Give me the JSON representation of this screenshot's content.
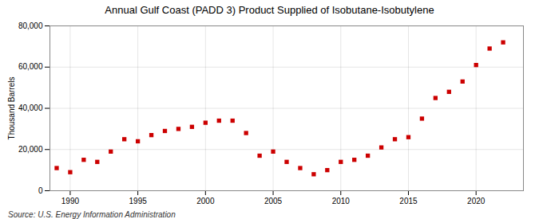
{
  "chart_data": {
    "type": "scatter",
    "title": "Annual Gulf Coast (PADD 3) Product Supplied of Isobutane-Isobutylene",
    "ylabel": "Thousand Barrels",
    "annotations": [
      "Source: U.S. Energy Information Administration"
    ],
    "x": [
      1989,
      1990,
      1991,
      1992,
      1993,
      1994,
      1995,
      1996,
      1997,
      1998,
      1999,
      2000,
      2001,
      2002,
      2003,
      2004,
      2005,
      2006,
      2007,
      2008,
      2009,
      2010,
      2011,
      2012,
      2013,
      2014,
      2015,
      2016,
      2017,
      2018,
      2019,
      2020,
      2021,
      2022
    ],
    "values": [
      11000,
      9000,
      15000,
      14000,
      19000,
      25000,
      24000,
      27000,
      29000,
      30000,
      31000,
      33000,
      34000,
      34000,
      28000,
      17000,
      19000,
      14000,
      11000,
      8000,
      10000,
      14000,
      15000,
      17000,
      21000,
      25000,
      26000,
      35000,
      45000,
      48000,
      53000,
      61000,
      69000,
      72000
    ],
    "color": "#cc0000",
    "marker": "square",
    "grid": true,
    "xlim": [
      1988.5,
      2023.5
    ],
    "xticks": [
      1990,
      1995,
      2000,
      2005,
      2010,
      2015,
      2020
    ],
    "ylim": [
      0,
      80000
    ],
    "yticks": [
      0,
      {
        "value": 20000,
        "label": "20,000"
      },
      {
        "value": 40000,
        "label": "40,000"
      },
      {
        "value": 60000,
        "label": "60,000"
      },
      {
        "value": 80000,
        "label": "80,000"
      }
    ]
  }
}
